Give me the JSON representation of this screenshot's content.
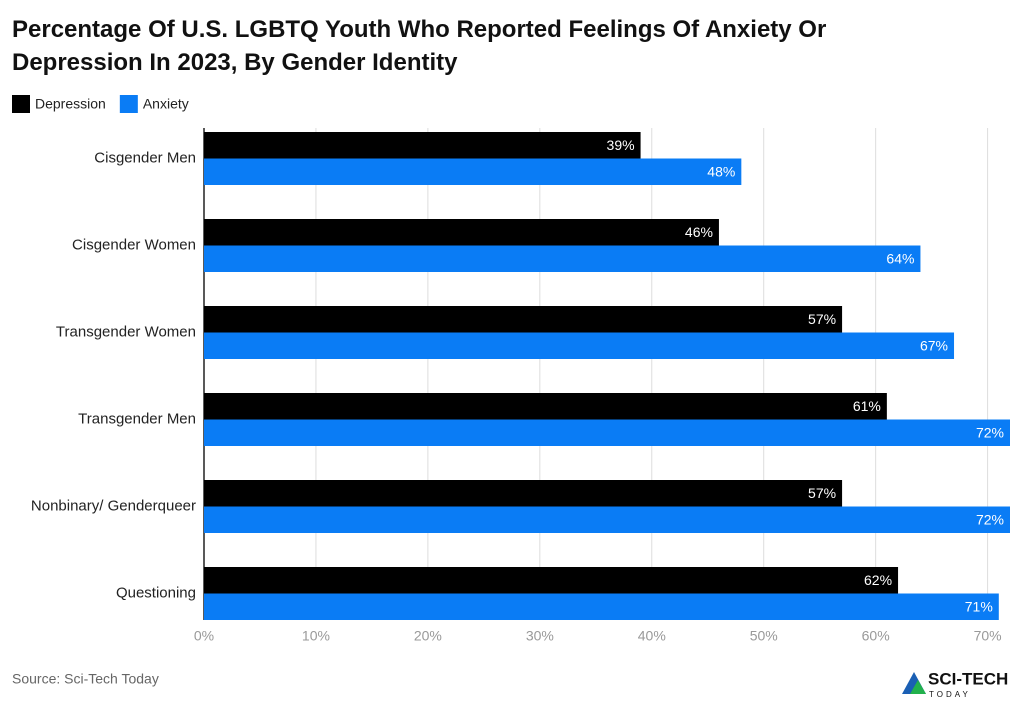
{
  "chart_data": {
    "type": "bar",
    "orientation": "horizontal",
    "title": "Percentage Of U.S. LGBTQ Youth Who Reported Feelings Of Anxiety Or Depression In 2023, By Gender Identity",
    "categories": [
      "Cisgender Men",
      "Cisgender Women",
      "Transgender Women",
      "Transgender Men",
      "Nonbinary/ Genderqueer",
      "Questioning"
    ],
    "series": [
      {
        "name": "Depression",
        "color": "#000000",
        "values": [
          39,
          46,
          57,
          61,
          57,
          62
        ],
        "value_labels": [
          "39%",
          "46%",
          "57%",
          "61%",
          "57%",
          "62%"
        ]
      },
      {
        "name": "Anxiety",
        "color": "#0a7cf5",
        "values": [
          48,
          64,
          67,
          72,
          72,
          71
        ],
        "value_labels": [
          "48%",
          "64%",
          "67%",
          "72%",
          "72%",
          "71%"
        ]
      }
    ],
    "xlim": [
      0,
      72
    ],
    "xticks": [
      {
        "value": 0,
        "label": "0%"
      },
      {
        "value": 10,
        "label": "10%"
      },
      {
        "value": 20,
        "label": "20%"
      },
      {
        "value": 30,
        "label": "30%"
      },
      {
        "value": 40,
        "label": "40%"
      },
      {
        "value": 50,
        "label": "50%"
      },
      {
        "value": 60,
        "label": "60%"
      },
      {
        "value": 70,
        "label": "70%"
      }
    ],
    "grid": true,
    "legend": "top-left",
    "source": "Source: Sci-Tech Today",
    "logo": {
      "name": "SCI-TECH",
      "sub": "TODAY"
    }
  }
}
